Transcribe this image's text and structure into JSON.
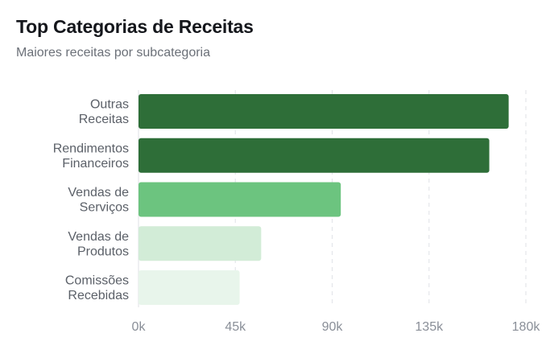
{
  "header": {
    "title": "Top Categorias de Receitas",
    "subtitle": "Maiores receitas por subcategoria"
  },
  "chart_data": {
    "type": "bar",
    "orientation": "horizontal",
    "title": "Top Categorias de Receitas",
    "subtitle": "Maiores receitas por subcategoria",
    "categories": [
      [
        "Outras",
        "Receitas"
      ],
      [
        "Rendimentos",
        "Financeiros"
      ],
      [
        "Vendas de",
        "Serviços"
      ],
      [
        "Vendas de",
        "Produtos"
      ],
      [
        "Comissões",
        "Recebidas"
      ]
    ],
    "values": [
      172000,
      163000,
      94000,
      57000,
      47000
    ],
    "bar_colors": [
      "#2e6e38",
      "#2e6e38",
      "#6cc47f",
      "#d2ecd7",
      "#e8f5eb"
    ],
    "xlim": [
      0,
      180000
    ],
    "xticks": [
      0,
      45000,
      90000,
      135000,
      180000
    ],
    "xtick_labels": [
      "0k",
      "45k",
      "90k",
      "135k",
      "180k"
    ],
    "grid": "vertical-dashed",
    "legend": "none"
  }
}
